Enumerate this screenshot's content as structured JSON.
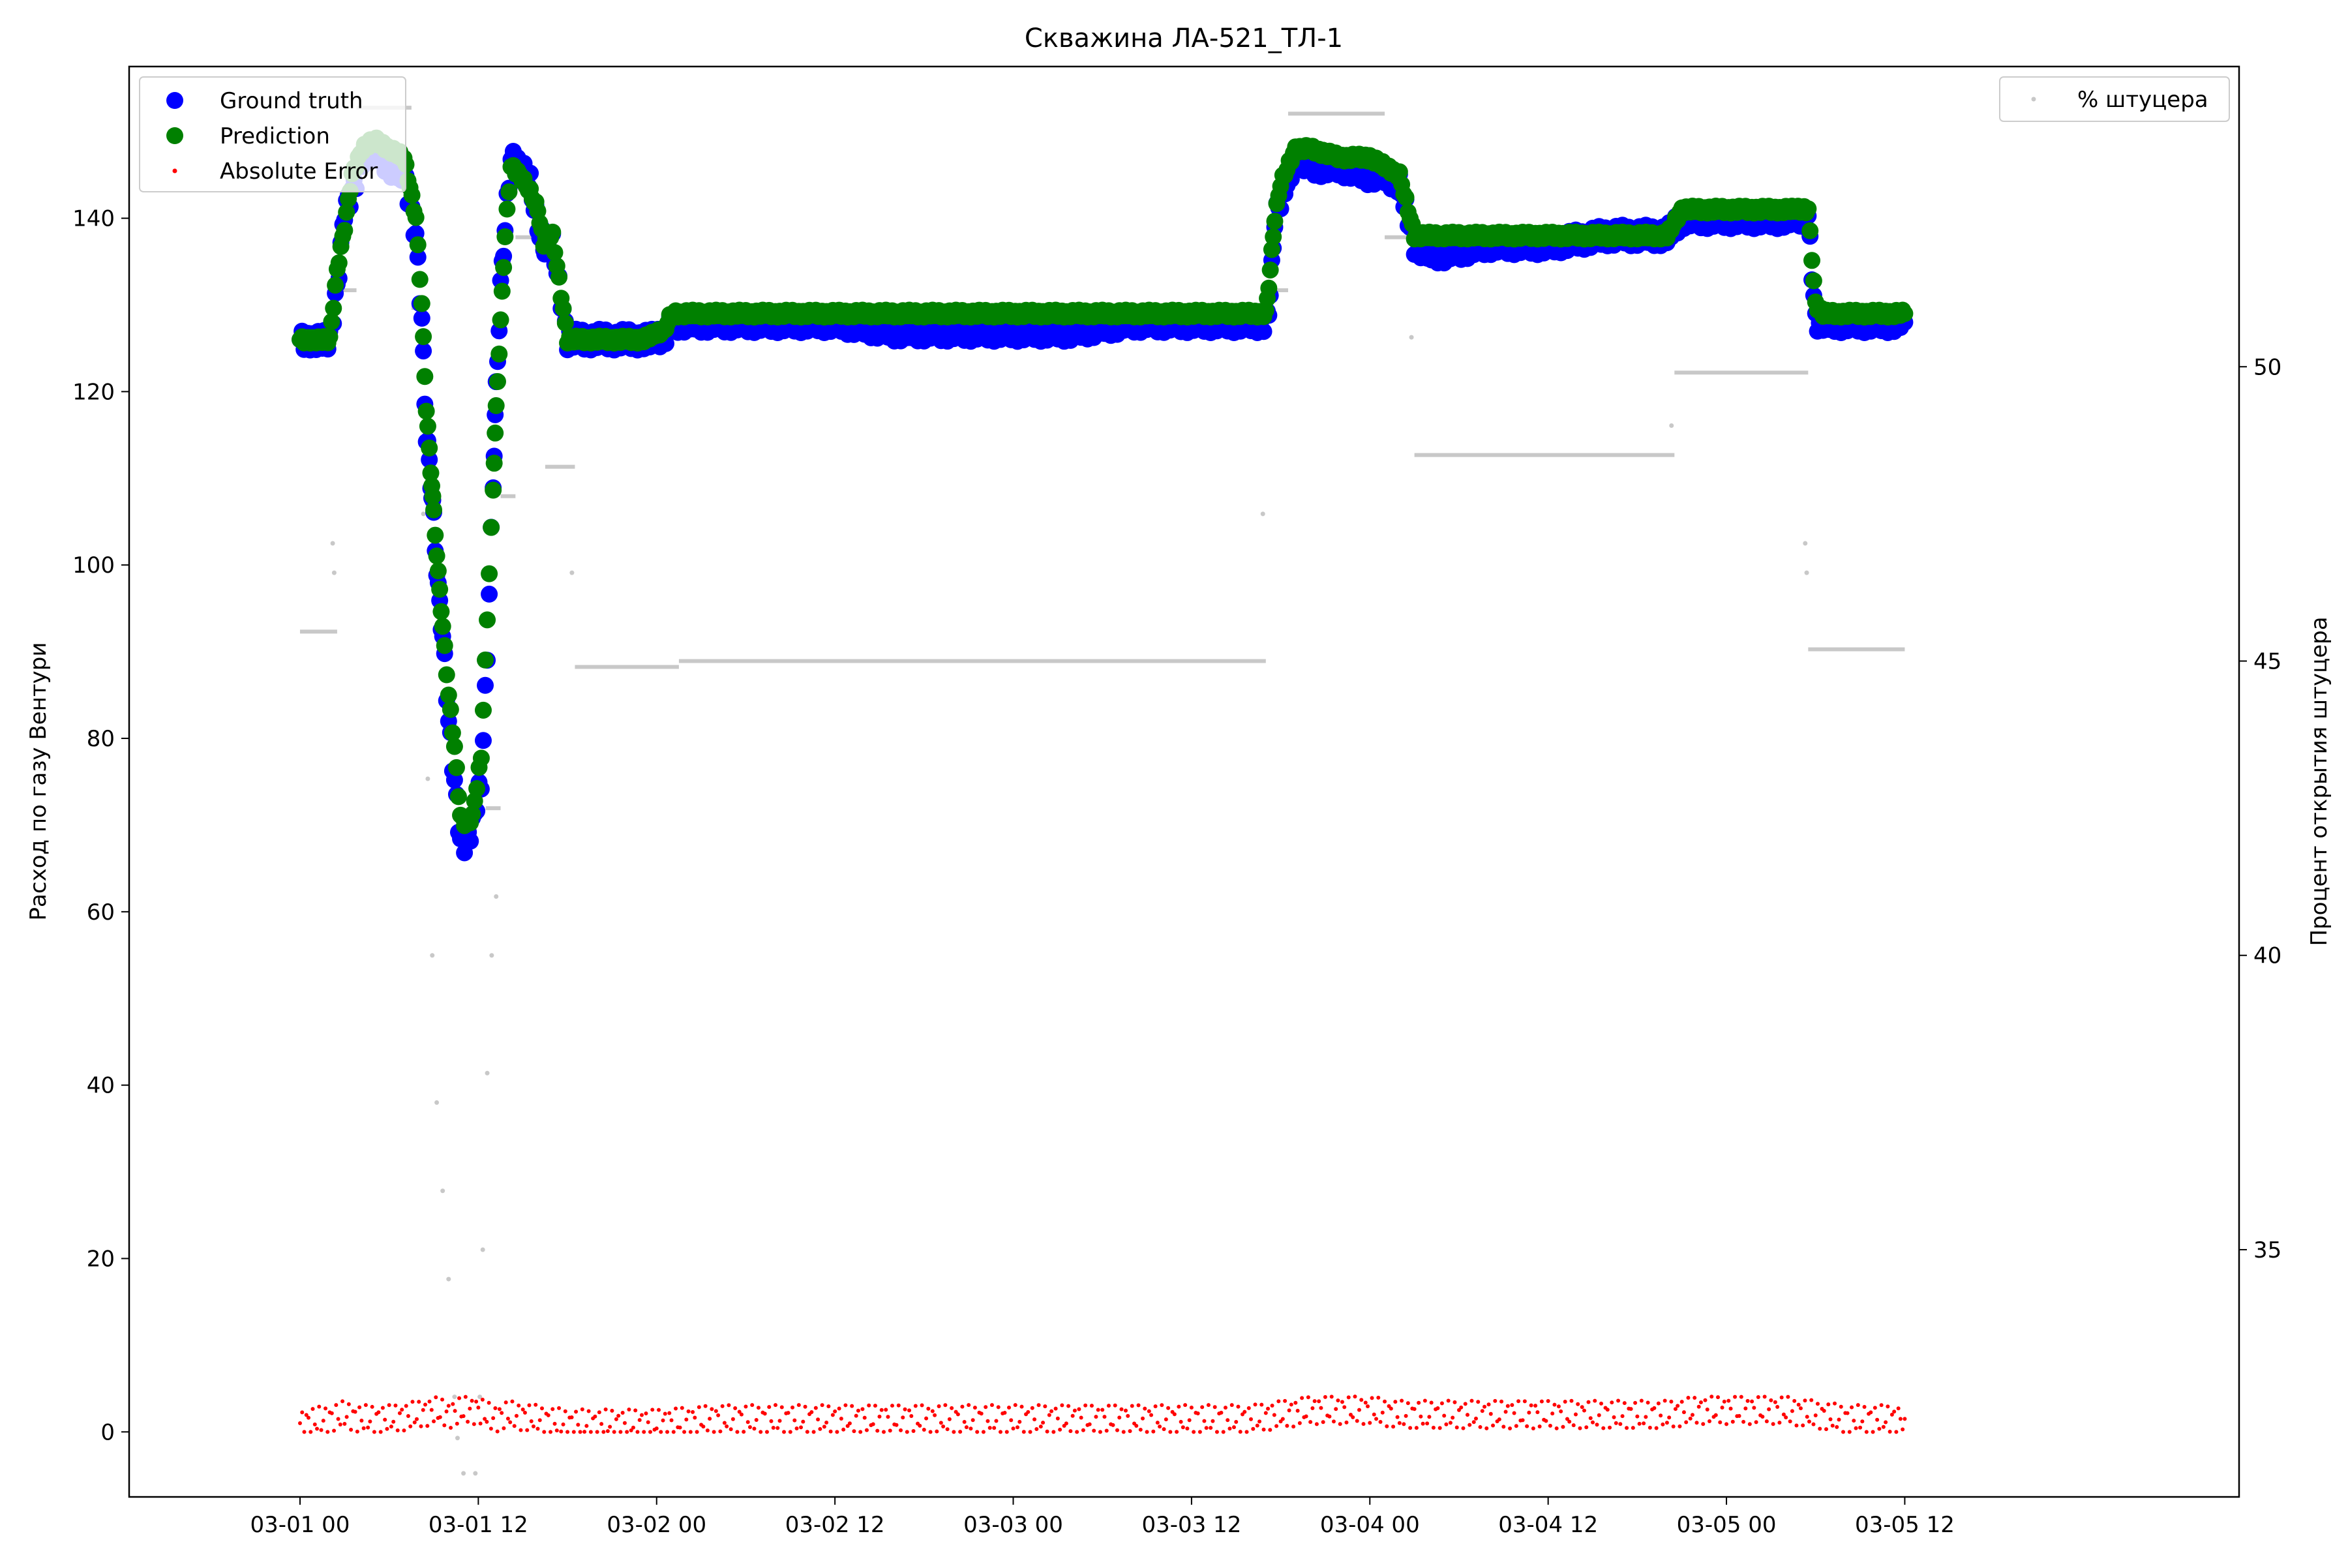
{
  "chart_data": {
    "type": "scatter",
    "title": "Скважина ЛА-521_ТЛ-1",
    "ylabel": "Расход по газу Вентури",
    "ylabel_right": "Процент открытия штуцера",
    "xlabel": "",
    "ylim": [
      -7.5,
      157.5
    ],
    "ylim_right": [
      30.8,
      55.1
    ],
    "xlim_hours": [
      -11.5,
      130.5
    ],
    "x_ticks": [
      {
        "hour": 0,
        "label": "03-01 00"
      },
      {
        "hour": 12,
        "label": "03-01 12"
      },
      {
        "hour": 24,
        "label": "03-02 00"
      },
      {
        "hour": 36,
        "label": "03-02 12"
      },
      {
        "hour": 48,
        "label": "03-03 00"
      },
      {
        "hour": 60,
        "label": "03-03 12"
      },
      {
        "hour": 72,
        "label": "03-04 00"
      },
      {
        "hour": 84,
        "label": "03-04 12"
      },
      {
        "hour": 96,
        "label": "03-05 00"
      },
      {
        "hour": 108,
        "label": "03-05 12"
      }
    ],
    "y_ticks": [
      0,
      20,
      40,
      60,
      80,
      100,
      120,
      140
    ],
    "y_ticks_right": [
      35,
      40,
      45,
      50
    ],
    "legend_left": {
      "position": "upper left",
      "entries": [
        "Ground truth",
        "Prediction",
        "Absolute Error"
      ]
    },
    "legend_right": {
      "position": "upper right",
      "entries": [
        "% штуцера"
      ]
    },
    "colors": {
      "ground_truth": "#0000ff",
      "prediction": "#008000",
      "absolute_error": "#ff0000",
      "choke": "#c8c8c8"
    },
    "series": [
      {
        "name": "Ground truth",
        "x_hours": [
          0,
          1.5,
          2,
          2.5,
          3,
          3.5,
          4.2,
          5,
          6,
          7,
          7.8,
          8.2,
          8.5,
          8.8,
          9,
          9.3,
          9.6,
          10,
          10.4,
          10.8,
          11.2,
          11.6,
          12.2,
          12.6,
          13,
          13.2,
          13.5,
          13.8,
          14.2,
          14.8,
          15.5,
          16,
          16.4,
          16.6,
          17,
          18,
          19,
          20,
          21,
          22,
          23,
          24.5,
          25,
          27,
          30,
          33,
          36,
          40,
          44,
          48,
          52,
          56,
          60,
          64,
          65,
          65.3,
          65.6,
          66,
          67,
          68,
          70,
          72,
          73,
          74,
          75,
          76,
          77,
          80,
          84,
          88,
          92,
          93,
          95,
          98,
          100,
          101.5,
          102,
          102.5,
          103,
          104,
          106,
          108
        ],
        "y": [
          126,
          126,
          126,
          132,
          141,
          143,
          147,
          148,
          146,
          145,
          138,
          128,
          115,
          110,
          105,
          97,
          92,
          82,
          75,
          68,
          68,
          70,
          75,
          90,
          110,
          120,
          132,
          139,
          147,
          146,
          144,
          139,
          137,
          137,
          137,
          126,
          126,
          126,
          126,
          126,
          126,
          126,
          128,
          128,
          128,
          128,
          128,
          127,
          127,
          127,
          127,
          128,
          128,
          128,
          128,
          131,
          140,
          142,
          147,
          146,
          146,
          145,
          145,
          144,
          137,
          136,
          136,
          137,
          137,
          138,
          138,
          140,
          140,
          140,
          140,
          140,
          128,
          128,
          128,
          128,
          128,
          128
        ]
      },
      {
        "name": "Prediction",
        "x_hours": [
          0,
          1.5,
          2,
          2.5,
          3,
          3.5,
          4.2,
          5,
          6,
          7,
          7.8,
          8.2,
          8.5,
          8.8,
          9,
          9.3,
          9.6,
          10,
          10.4,
          10.8,
          11.2,
          11.6,
          12.2,
          12.6,
          13,
          13.2,
          13.5,
          13.8,
          14.2,
          14.8,
          15.5,
          16,
          16.4,
          16.6,
          17,
          18,
          19,
          20,
          21,
          22,
          23,
          24.5,
          25,
          27,
          30,
          33,
          36,
          40,
          44,
          48,
          52,
          56,
          60,
          64,
          65,
          65.3,
          65.6,
          66,
          67,
          68,
          70,
          72,
          73,
          74,
          75,
          76,
          77,
          80,
          84,
          88,
          92,
          93,
          95,
          98,
          100,
          101.5,
          102,
          102.5,
          103,
          104,
          106,
          108
        ],
        "y": [
          126,
          126,
          126,
          134,
          139,
          145,
          148,
          149,
          148,
          147,
          140,
          130,
          118,
          111,
          106,
          99,
          93,
          85,
          79,
          71,
          70,
          71,
          78,
          94,
          109,
          118,
          128,
          138,
          146,
          145,
          143,
          141,
          137,
          138,
          138,
          126,
          126,
          126,
          126,
          126,
          126,
          127,
          129,
          129,
          129,
          129,
          129,
          129,
          129,
          129,
          129,
          129,
          129,
          129,
          129,
          134,
          140,
          144,
          148,
          148,
          147,
          147,
          146,
          145,
          138,
          138,
          138,
          138,
          138,
          138,
          138,
          141,
          141,
          141,
          141,
          141,
          130,
          129,
          129,
          129,
          129,
          129
        ]
      },
      {
        "name": "Absolute Error",
        "x_hours": [
          0,
          2,
          3,
          4,
          6,
          8,
          9,
          10,
          11,
          12,
          13,
          14,
          16,
          18,
          20,
          24,
          28,
          32,
          36,
          40,
          44,
          48,
          52,
          56,
          60,
          64,
          66,
          68,
          70,
          72,
          74,
          76,
          80,
          84,
          88,
          92,
          94,
          96,
          98,
          100,
          102,
          104,
          106,
          108
        ],
        "y": [
          1,
          1.5,
          2,
          1.5,
          1.5,
          2,
          2.5,
          2,
          2.5,
          2.5,
          1.5,
          2,
          1.5,
          1,
          1,
          1,
          1.5,
          1.5,
          1.5,
          1.5,
          1.5,
          1.5,
          1.5,
          1.5,
          1.5,
          1.5,
          2,
          2.5,
          2.5,
          2.5,
          2,
          2,
          2,
          2,
          2,
          2,
          2.5,
          2.5,
          2.5,
          2.5,
          2,
          1.5,
          1.5,
          1.5
        ]
      },
      {
        "name": "% штуцера",
        "segments": [
          {
            "x_start": 0,
            "x_end": 2.5,
            "y": 45.5
          },
          {
            "x_start": 2.5,
            "x_end": 3.8,
            "y": 51.3
          },
          {
            "x_start": 3.8,
            "x_end": 7.5,
            "y": 54.4
          },
          {
            "x_start": 7.5,
            "x_end": 8.0,
            "y": 51.0
          },
          {
            "x_start": 12.5,
            "x_end": 13.5,
            "y": 42.5
          },
          {
            "x_start": 13.5,
            "x_end": 14.5,
            "y": 47.8
          },
          {
            "x_start": 14.5,
            "x_end": 16.0,
            "y": 52.2
          },
          {
            "x_start": 16.5,
            "x_end": 18.5,
            "y": 48.3
          },
          {
            "x_start": 18.5,
            "x_end": 25.5,
            "y": 44.9
          },
          {
            "x_start": 25.5,
            "x_end": 65.0,
            "y": 45.0
          },
          {
            "x_start": 65.0,
            "x_end": 66.5,
            "y": 51.3
          },
          {
            "x_start": 66.5,
            "x_end": 73.0,
            "y": 54.3
          },
          {
            "x_start": 73.0,
            "x_end": 75.0,
            "y": 52.2
          },
          {
            "x_start": 75.0,
            "x_end": 92.5,
            "y": 48.5
          },
          {
            "x_start": 92.5,
            "x_end": 101.5,
            "y": 49.9
          },
          {
            "x_start": 101.5,
            "x_end": 108.0,
            "y": 45.2
          }
        ],
        "scatter": [
          {
            "x": 2.2,
            "y": 47.0
          },
          {
            "x": 2.3,
            "y": 46.5
          },
          {
            "x": 8.3,
            "y": 47.5
          },
          {
            "x": 8.6,
            "y": 43.0
          },
          {
            "x": 8.9,
            "y": 40.0
          },
          {
            "x": 9.2,
            "y": 37.5
          },
          {
            "x": 9.6,
            "y": 36.0
          },
          {
            "x": 10.0,
            "y": 34.5
          },
          {
            "x": 10.4,
            "y": 32.5
          },
          {
            "x": 10.6,
            "y": 31.8
          },
          {
            "x": 11.0,
            "y": 31.2
          },
          {
            "x": 11.8,
            "y": 31.2
          },
          {
            "x": 12.1,
            "y": 32.5
          },
          {
            "x": 12.3,
            "y": 35.0
          },
          {
            "x": 12.6,
            "y": 38.0
          },
          {
            "x": 12.9,
            "y": 40.0
          },
          {
            "x": 13.2,
            "y": 41.0
          },
          {
            "x": 18.3,
            "y": 46.5
          },
          {
            "x": 64.8,
            "y": 47.5
          },
          {
            "x": 74.8,
            "y": 50.5
          },
          {
            "x": 92.3,
            "y": 49.0
          },
          {
            "x": 101.3,
            "y": 47.0
          },
          {
            "x": 101.4,
            "y": 46.5
          }
        ]
      }
    ]
  }
}
